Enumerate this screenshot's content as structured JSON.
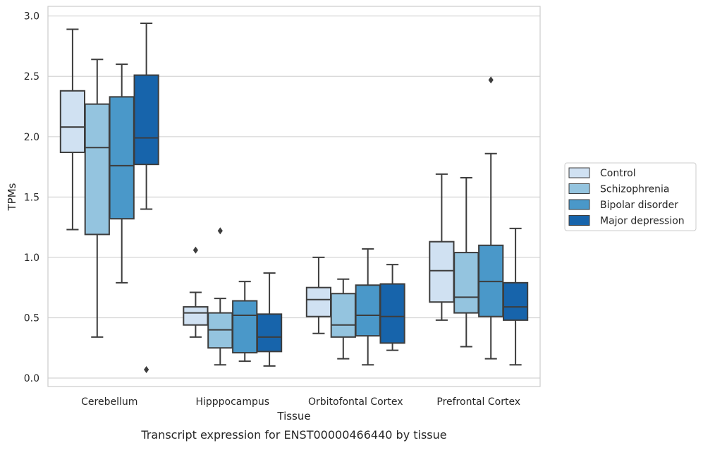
{
  "chart_data": {
    "type": "box",
    "title": "",
    "caption": "Transcript expression for ENST00000466440 by tissue",
    "xlabel": "Tissue",
    "ylabel": "TPMs",
    "ylim": [
      -0.07,
      3.08
    ],
    "yticks": [
      0.0,
      0.5,
      1.0,
      1.5,
      2.0,
      2.5,
      3.0
    ],
    "ytick_labels": [
      "0.0",
      "0.5",
      "1.0",
      "1.5",
      "2.0",
      "2.5",
      "3.0"
    ],
    "grid": "horizontal",
    "legend_position": "right",
    "categories": [
      "Cerebellum",
      "Hipppocampus",
      "Orbitofontal Cortex",
      "Prefrontal Cortex"
    ],
    "series": [
      {
        "name": "Control",
        "color": "#d0e1f2",
        "boxes": [
          {
            "whislo": 1.23,
            "q1": 1.87,
            "med": 2.08,
            "q3": 2.38,
            "whishi": 2.89,
            "fliers": []
          },
          {
            "whislo": 0.34,
            "q1": 0.44,
            "med": 0.54,
            "q3": 0.59,
            "whishi": 0.71,
            "fliers": [
              1.06
            ]
          },
          {
            "whislo": 0.37,
            "q1": 0.51,
            "med": 0.65,
            "q3": 0.75,
            "whishi": 1.0,
            "fliers": []
          },
          {
            "whislo": 0.48,
            "q1": 0.63,
            "med": 0.89,
            "q3": 1.13,
            "whishi": 1.69,
            "fliers": []
          }
        ]
      },
      {
        "name": "Schizophrenia",
        "color": "#94c4df",
        "boxes": [
          {
            "whislo": 0.34,
            "q1": 1.19,
            "med": 1.91,
            "q3": 2.27,
            "whishi": 2.64,
            "fliers": []
          },
          {
            "whislo": 0.11,
            "q1": 0.25,
            "med": 0.4,
            "q3": 0.54,
            "whishi": 0.66,
            "fliers": [
              1.22
            ]
          },
          {
            "whislo": 0.16,
            "q1": 0.34,
            "med": 0.44,
            "q3": 0.7,
            "whishi": 0.82,
            "fliers": []
          },
          {
            "whislo": 0.26,
            "q1": 0.54,
            "med": 0.67,
            "q3": 1.04,
            "whishi": 1.66,
            "fliers": []
          }
        ]
      },
      {
        "name": "Bipolar disorder",
        "color": "#4a98c9",
        "boxes": [
          {
            "whislo": 0.79,
            "q1": 1.32,
            "med": 1.76,
            "q3": 2.33,
            "whishi": 2.6,
            "fliers": []
          },
          {
            "whislo": 0.14,
            "q1": 0.21,
            "med": 0.52,
            "q3": 0.64,
            "whishi": 0.8,
            "fliers": []
          },
          {
            "whislo": 0.11,
            "q1": 0.35,
            "med": 0.52,
            "q3": 0.77,
            "whishi": 1.07,
            "fliers": []
          },
          {
            "whislo": 0.16,
            "q1": 0.51,
            "med": 0.8,
            "q3": 1.1,
            "whishi": 1.86,
            "fliers": [
              2.47
            ]
          }
        ]
      },
      {
        "name": "Major depression",
        "color": "#1764ab",
        "boxes": [
          {
            "whislo": 1.4,
            "q1": 1.77,
            "med": 1.99,
            "q3": 2.51,
            "whishi": 2.94,
            "fliers": [
              0.07
            ]
          },
          {
            "whislo": 0.1,
            "q1": 0.22,
            "med": 0.34,
            "q3": 0.53,
            "whishi": 0.87,
            "fliers": []
          },
          {
            "whislo": 0.23,
            "q1": 0.29,
            "med": 0.51,
            "q3": 0.78,
            "whishi": 0.94,
            "fliers": []
          },
          {
            "whislo": 0.11,
            "q1": 0.48,
            "med": 0.59,
            "q3": 0.79,
            "whishi": 1.24,
            "fliers": []
          }
        ]
      }
    ]
  }
}
